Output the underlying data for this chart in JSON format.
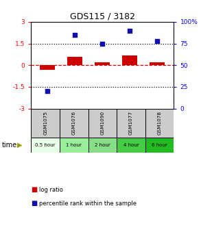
{
  "title": "GDS115 / 3182",
  "samples": [
    "GSM1075",
    "GSM1076",
    "GSM1090",
    "GSM1077",
    "GSM1078"
  ],
  "time_labels": [
    "0.5 hour",
    "1 hour",
    "2 hour",
    "4 hour",
    "6 hour"
  ],
  "log_ratios": [
    -0.3,
    0.6,
    0.2,
    0.7,
    0.2
  ],
  "percentile_ranks": [
    20,
    85,
    75,
    90,
    78
  ],
  "ylim_left": [
    -3,
    3
  ],
  "ylim_right": [
    0,
    100
  ],
  "yticks_left": [
    -3,
    -1.5,
    0,
    1.5,
    3
  ],
  "yticks_right": [
    0,
    25,
    50,
    75,
    100
  ],
  "ytick_labels_left": [
    "-3",
    "-1.5",
    "0",
    "1.5",
    "3"
  ],
  "ytick_labels_right": [
    "0",
    "25",
    "50",
    "75",
    "100%"
  ],
  "hlines": [
    1.5,
    -1.5
  ],
  "bar_color": "#cc0000",
  "dot_color": "#1111aa",
  "time_colors": [
    "#e8ffe8",
    "#99ee99",
    "#88dd88",
    "#44cc44",
    "#22bb22"
  ],
  "sample_bg_color": "#cccccc",
  "legend_log_ratio": "log ratio",
  "legend_percentile": "percentile rank within the sample",
  "bar_width": 0.55
}
